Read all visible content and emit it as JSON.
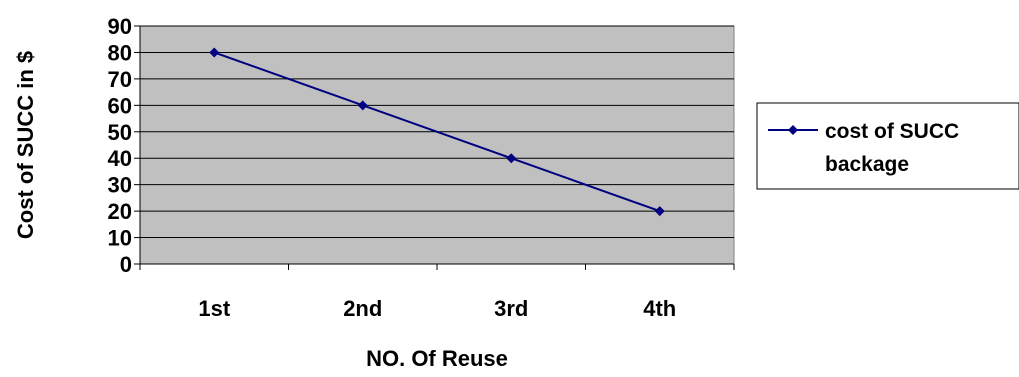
{
  "chart_data": {
    "type": "line",
    "title": "",
    "xlabel": "NO. Of Reuse",
    "ylabel": "Cost of SUCC  in $",
    "categories": [
      "1st",
      "2nd",
      "3rd",
      "4th"
    ],
    "ylim": [
      0,
      90
    ],
    "yticks": [
      "0",
      "10",
      "20",
      "30",
      "40",
      "50",
      "60",
      "70",
      "80",
      "90"
    ],
    "grid": true,
    "legend_position": "right",
    "series": [
      {
        "name": "cost of SUCC backage",
        "legend_lines": [
          "cost of SUCC",
          "backage"
        ],
        "values": [
          80,
          60,
          40,
          20
        ],
        "color": "#000080"
      }
    ],
    "plot_background": "#c0c0c0"
  }
}
